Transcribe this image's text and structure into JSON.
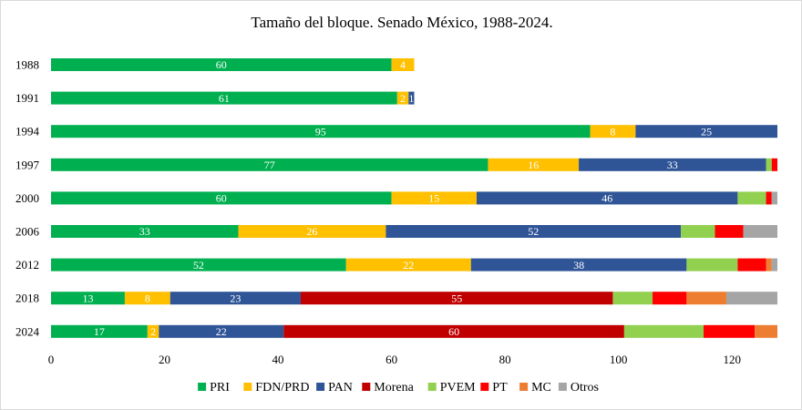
{
  "chart_data": {
    "type": "bar",
    "orientation": "horizontal",
    "stacked": true,
    "title": "Tamaño del bloque. Senado México, 1988-2024.",
    "xlabel": "",
    "ylabel": "",
    "xlim": [
      0,
      128
    ],
    "xticks": [
      0,
      20,
      40,
      60,
      80,
      100,
      120
    ],
    "grid": false,
    "legend_position": "bottom",
    "categories": [
      "1988",
      "1991",
      "1994",
      "1997",
      "2000",
      "2006",
      "2012",
      "2018",
      "2024"
    ],
    "series": [
      {
        "name": "PRI",
        "color": "#00b050",
        "label_color": "#ffffff",
        "values": [
          60,
          61,
          95,
          77,
          60,
          33,
          52,
          13,
          17
        ]
      },
      {
        "name": "FDN/PRD",
        "color": "#ffc000",
        "label_color": "#ffffff",
        "values": [
          4,
          2,
          8,
          16,
          15,
          26,
          22,
          8,
          2
        ]
      },
      {
        "name": "PAN",
        "color": "#2f5597",
        "label_color": "#ffffff",
        "values": [
          0,
          1,
          25,
          33,
          46,
          52,
          38,
          23,
          22
        ]
      },
      {
        "name": "Morena",
        "color": "#c00000",
        "label_color": "#ffffff",
        "values": [
          0,
          0,
          0,
          0,
          0,
          0,
          0,
          55,
          60
        ]
      },
      {
        "name": "PVEM",
        "color": "#92d050",
        "label_color": "#ffffff",
        "values": [
          0,
          0,
          0,
          1,
          5,
          6,
          9,
          7,
          14
        ]
      },
      {
        "name": "PT",
        "color": "#ff0000",
        "label_color": "#ffffff",
        "values": [
          0,
          0,
          0,
          1,
          1,
          5,
          5,
          6,
          9
        ]
      },
      {
        "name": "MC",
        "color": "#ed7d31",
        "label_color": "#ffffff",
        "values": [
          0,
          0,
          0,
          0,
          0,
          0,
          1,
          7,
          4
        ]
      },
      {
        "name": "Otros",
        "color": "#a5a5a5",
        "label_color": "#ffffff",
        "values": [
          0,
          0,
          0,
          0,
          1,
          6,
          1,
          9,
          0
        ]
      }
    ],
    "data_labels": [
      {
        "category": "1988",
        "series": "PRI",
        "text": "60"
      },
      {
        "category": "1988",
        "series": "FDN/PRD",
        "text": "4"
      },
      {
        "category": "1991",
        "series": "PRI",
        "text": "61"
      },
      {
        "category": "1991",
        "series": "FDN/PRD",
        "text": "2"
      },
      {
        "category": "1991",
        "series": "PAN",
        "text": "1"
      },
      {
        "category": "1994",
        "series": "PRI",
        "text": "95"
      },
      {
        "category": "1994",
        "series": "FDN/PRD",
        "text": "8"
      },
      {
        "category": "1994",
        "series": "PAN",
        "text": "25"
      },
      {
        "category": "1997",
        "series": "PRI",
        "text": "77"
      },
      {
        "category": "1997",
        "series": "FDN/PRD",
        "text": "16"
      },
      {
        "category": "1997",
        "series": "PAN",
        "text": "33"
      },
      {
        "category": "2000",
        "series": "PRI",
        "text": "60"
      },
      {
        "category": "2000",
        "series": "FDN/PRD",
        "text": "15"
      },
      {
        "category": "2000",
        "series": "PAN",
        "text": "46"
      },
      {
        "category": "2006",
        "series": "PRI",
        "text": "33"
      },
      {
        "category": "2006",
        "series": "FDN/PRD",
        "text": "26"
      },
      {
        "category": "2006",
        "series": "PAN",
        "text": "52"
      },
      {
        "category": "2012",
        "series": "PRI",
        "text": "52"
      },
      {
        "category": "2012",
        "series": "FDN/PRD",
        "text": "22"
      },
      {
        "category": "2012",
        "series": "PAN",
        "text": "38"
      },
      {
        "category": "2018",
        "series": "PRI",
        "text": "13"
      },
      {
        "category": "2018",
        "series": "FDN/PRD",
        "text": "8"
      },
      {
        "category": "2018",
        "series": "PAN",
        "text": "23"
      },
      {
        "category": "2018",
        "series": "Morena",
        "text": "55"
      },
      {
        "category": "2024",
        "series": "PRI",
        "text": "17"
      },
      {
        "category": "2024",
        "series": "FDN/PRD",
        "text": "2"
      },
      {
        "category": "2024",
        "series": "PAN",
        "text": "22"
      },
      {
        "category": "2024",
        "series": "Morena",
        "text": "60"
      }
    ]
  }
}
